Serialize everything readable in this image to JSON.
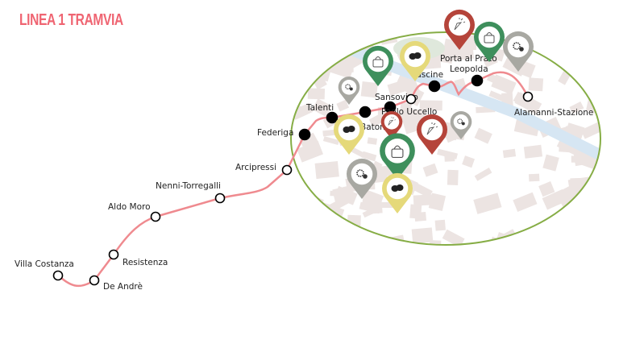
{
  "title": "LINEA 1 TRAMVIA",
  "colors": {
    "line": "#ef8a8f",
    "zone": "#86ad45",
    "river": "#d6e6f3",
    "blocks": "#ece4e2",
    "pin_red": "#b5443a",
    "pin_green": "#3e8f5c",
    "pin_yellow": "#e5d97a",
    "pin_gray": "#a8a8a2"
  },
  "stations": [
    {
      "name": "Villa Costanza",
      "type": "open"
    },
    {
      "name": "De Andrè",
      "type": "open"
    },
    {
      "name": "Resistenza",
      "type": "open"
    },
    {
      "name": "Aldo Moro",
      "type": "open"
    },
    {
      "name": "Nenni-Torregalli",
      "type": "open"
    },
    {
      "name": "Arcipressi",
      "type": "open"
    },
    {
      "name": "Federiga",
      "type": "filled"
    },
    {
      "name": "Talenti",
      "type": "filled"
    },
    {
      "name": "Batoni",
      "type": "filled"
    },
    {
      "name": "Sansovino",
      "type": "filled"
    },
    {
      "name": "Paolo Uccello",
      "type": "open"
    },
    {
      "name": "Cascine",
      "type": "filled"
    },
    {
      "name": "Porta al Prato Leopolda",
      "type": "filled"
    },
    {
      "name": "Alamanni-Stazione",
      "type": "open"
    }
  ],
  "pins": [
    {
      "category": "party",
      "icon": "party-popper-icon",
      "color": "red"
    },
    {
      "category": "shopping",
      "icon": "handbag-icon",
      "color": "green"
    },
    {
      "category": "services",
      "icon": "gear-icon",
      "color": "gray"
    },
    {
      "category": "theatre",
      "icon": "theatre-masks-icon",
      "color": "yellow"
    },
    {
      "category": "shopping",
      "icon": "handbag-icon",
      "color": "green"
    },
    {
      "category": "services",
      "icon": "gear-icon",
      "color": "gray"
    },
    {
      "category": "theatre",
      "icon": "theatre-masks-icon",
      "color": "yellow"
    },
    {
      "category": "party",
      "icon": "party-popper-icon",
      "color": "red"
    },
    {
      "category": "party",
      "icon": "party-popper-icon",
      "color": "red"
    },
    {
      "category": "services",
      "icon": "gear-icon",
      "color": "gray"
    },
    {
      "category": "shopping",
      "icon": "handbag-icon",
      "color": "green"
    },
    {
      "category": "services",
      "icon": "gear-icon",
      "color": "gray"
    },
    {
      "category": "theatre",
      "icon": "theatre-masks-icon",
      "color": "yellow"
    }
  ]
}
